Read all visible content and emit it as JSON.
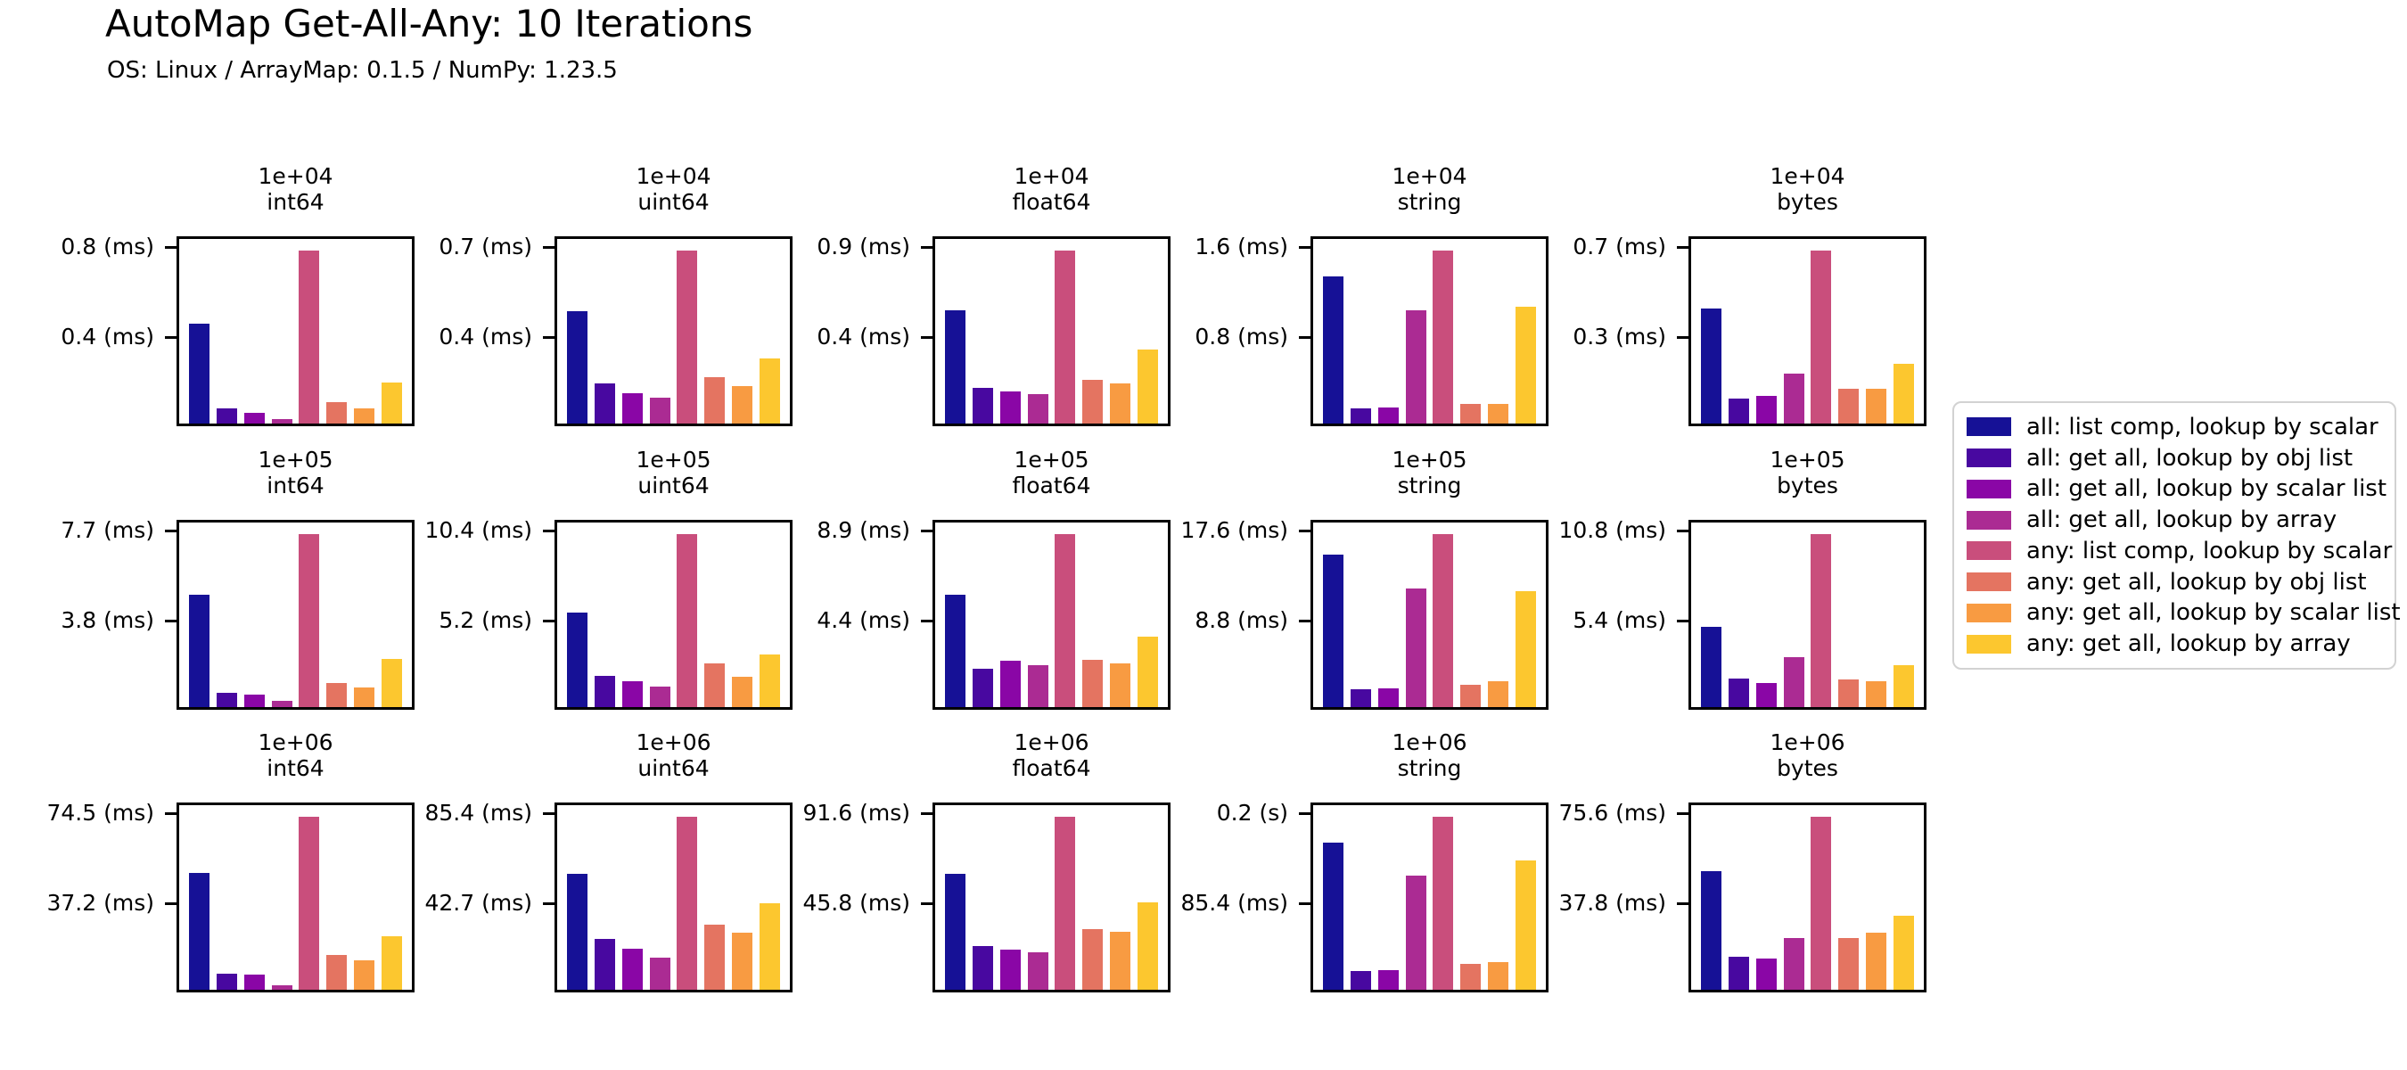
{
  "header": {
    "title": "AutoMap Get-All-Any: 10 Iterations",
    "subtitle": "OS: Linux / ArrayMap: 0.1.5 / NumPy: 1.23.5"
  },
  "chart_data": {
    "type": "bar",
    "title": "AutoMap Get-All-Any: 10 Iterations",
    "subtitle": "OS: Linux / ArrayMap: 0.1.5 / NumPy: 1.23.5",
    "grid": {
      "rows": 3,
      "cols": 5
    },
    "legend_position": "right",
    "series": [
      {
        "name": "all: list comp, lookup by scalar",
        "color": "#161196"
      },
      {
        "name": "all: get all, lookup by obj list",
        "color": "#4808a0"
      },
      {
        "name": "all: get all, lookup by scalar list",
        "color": "#8a06a6"
      },
      {
        "name": "all: get all, lookup by array",
        "color": "#ab2b93"
      },
      {
        "name": "any: list comp, lookup by scalar",
        "color": "#c94e7c"
      },
      {
        "name": "any: get all, lookup by obj list",
        "color": "#e47461"
      },
      {
        "name": "any: get all, lookup by scalar list",
        "color": "#f89b42"
      },
      {
        "name": "any: get all, lookup by array",
        "color": "#fcc72f"
      }
    ],
    "subplots": [
      {
        "size": "1e+04",
        "dtype": "int64",
        "yticks": [
          "0.8 (ms)",
          "0.4 (ms)"
        ],
        "values_ms": [
          0.46,
          0.07,
          0.05,
          0.02,
          0.8,
          0.1,
          0.07,
          0.19
        ]
      },
      {
        "size": "1e+04",
        "dtype": "uint64",
        "yticks": [
          "0.7 (ms)",
          "0.4 (ms)"
        ],
        "values_ms": [
          0.48,
          0.17,
          0.13,
          0.11,
          0.74,
          0.2,
          0.16,
          0.28
        ]
      },
      {
        "size": "1e+04",
        "dtype": "float64",
        "yticks": [
          "0.9 (ms)",
          "0.4 (ms)"
        ],
        "values_ms": [
          0.57,
          0.18,
          0.16,
          0.15,
          0.87,
          0.22,
          0.2,
          0.37
        ]
      },
      {
        "size": "1e+04",
        "dtype": "string",
        "yticks": [
          "1.6 (ms)",
          "0.8 (ms)"
        ],
        "values_ms": [
          1.38,
          0.14,
          0.15,
          1.06,
          1.62,
          0.18,
          0.18,
          1.09
        ]
      },
      {
        "size": "1e+04",
        "dtype": "bytes",
        "yticks": [
          "0.7 (ms)",
          "0.3 (ms)"
        ],
        "values_ms": [
          0.46,
          0.1,
          0.11,
          0.2,
          0.69,
          0.14,
          0.14,
          0.24
        ]
      },
      {
        "size": "1e+05",
        "dtype": "int64",
        "yticks": [
          "7.7 (ms)",
          "3.8 (ms)"
        ],
        "values_ms": [
          5.0,
          0.65,
          0.54,
          0.26,
          7.7,
          1.07,
          0.86,
          2.14
        ]
      },
      {
        "size": "1e+05",
        "dtype": "uint64",
        "yticks": [
          "10.4 (ms)",
          "5.2 (ms)"
        ],
        "values_ms": [
          5.7,
          1.85,
          1.56,
          1.21,
          10.4,
          2.65,
          1.82,
          3.14
        ]
      },
      {
        "size": "1e+05",
        "dtype": "float64",
        "yticks": [
          "8.9 (ms)",
          "4.4 (ms)"
        ],
        "values_ms": [
          5.76,
          1.99,
          2.39,
          2.14,
          8.9,
          2.44,
          2.26,
          3.62
        ]
      },
      {
        "size": "1e+05",
        "dtype": "string",
        "yticks": [
          "17.6 (ms)",
          "8.8 (ms)"
        ],
        "values_ms": [
          15.5,
          1.8,
          1.9,
          12.1,
          17.6,
          2.3,
          2.6,
          11.8
        ]
      },
      {
        "size": "1e+05",
        "dtype": "bytes",
        "yticks": [
          "10.8 (ms)",
          "5.4 (ms)"
        ],
        "values_ms": [
          5.0,
          1.8,
          1.48,
          3.1,
          10.8,
          1.7,
          1.64,
          2.61
        ]
      },
      {
        "size": "1e+06",
        "dtype": "int64",
        "yticks": [
          "74.5 (ms)",
          "37.2 (ms)"
        ],
        "values_ms": [
          50.4,
          7.0,
          6.5,
          1.9,
          74.5,
          15.0,
          12.8,
          23.2
        ]
      },
      {
        "size": "1e+06",
        "dtype": "uint64",
        "yticks": [
          "85.4 (ms)",
          "42.7 (ms)"
        ],
        "values_ms": [
          57.4,
          25.1,
          20.1,
          15.8,
          85.4,
          32.2,
          28.0,
          42.6
        ]
      },
      {
        "size": "1e+06",
        "dtype": "float64",
        "yticks": [
          "91.6 (ms)",
          "45.8 (ms)"
        ],
        "values_ms": [
          61.2,
          22.9,
          21.3,
          20.0,
          91.6,
          32.1,
          30.7,
          46.3
        ]
      },
      {
        "size": "1e+06",
        "dtype": "string",
        "yticks": [
          "0.2 (s)",
          "85.4 (ms)"
        ],
        "values_ms": [
          145.0,
          18.6,
          19.8,
          112.7,
          170.8,
          25.8,
          27.2,
          127.9
        ]
      },
      {
        "size": "1e+06",
        "dtype": "bytes",
        "yticks": [
          "75.6 (ms)",
          "37.8 (ms)"
        ],
        "values_ms": [
          52.0,
          14.6,
          13.6,
          22.7,
          75.6,
          22.6,
          24.8,
          32.4
        ]
      }
    ]
  }
}
